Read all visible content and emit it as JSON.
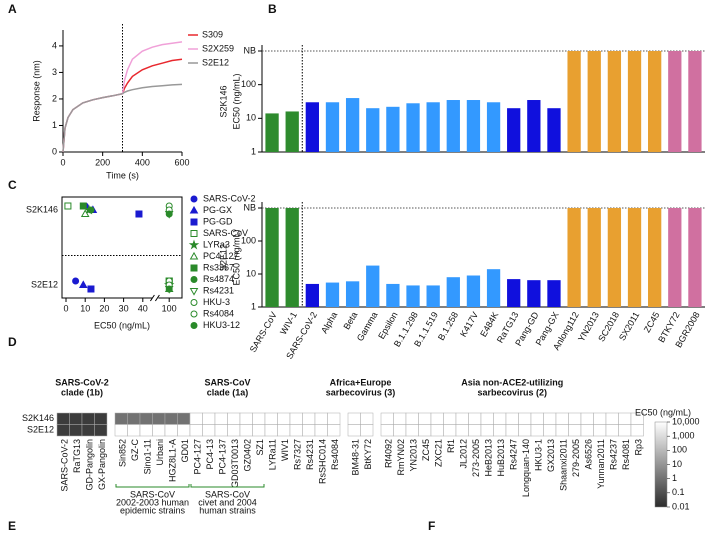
{
  "panel_labels": [
    "A",
    "B",
    "C",
    "D",
    "E",
    "F"
  ],
  "chart_data": [
    {
      "type": "line",
      "xlabel": "Time (s)",
      "ylabel": "Response (nm)",
      "x": [
        0,
        10,
        25,
        50,
        100,
        150,
        200,
        250,
        300,
        310,
        325,
        350,
        400,
        450,
        500,
        550,
        600
      ],
      "xlim": [
        0,
        600
      ],
      "xticks": [
        0,
        200,
        400,
        600
      ],
      "ylim": [
        0,
        4.6
      ],
      "yticks": [
        0,
        1,
        2,
        3,
        4
      ],
      "vline": 300,
      "series": [
        {
          "name": "S309",
          "color": "#e8282e",
          "values": [
            0,
            0.9,
            1.3,
            1.6,
            1.85,
            1.97,
            2.05,
            2.12,
            2.2,
            2.4,
            2.6,
            2.85,
            3.1,
            3.25,
            3.35,
            3.45,
            3.5
          ]
        },
        {
          "name": "S2X259",
          "color": "#f0a0d8",
          "values": [
            0,
            0.9,
            1.3,
            1.6,
            1.85,
            1.97,
            2.05,
            2.12,
            2.2,
            2.7,
            3.1,
            3.5,
            3.8,
            3.95,
            4.05,
            4.1,
            4.15
          ]
        },
        {
          "name": "S2E12",
          "color": "#999999",
          "values": [
            0,
            0.9,
            1.3,
            1.6,
            1.85,
            1.97,
            2.05,
            2.12,
            2.2,
            2.25,
            2.3,
            2.35,
            2.42,
            2.47,
            2.5,
            2.53,
            2.55
          ]
        }
      ]
    },
    {
      "type": "bar",
      "ylabel": [
        "S2K146",
        "EC50 (ng/mL)"
      ],
      "log": true,
      "ylim": [
        1,
        1000
      ],
      "yticks": [
        1,
        10,
        100,
        {
          "value": 1000,
          "label": "NB"
        }
      ],
      "colors": [
        "#2e8b2e",
        "#2e8b2e",
        "#1010dd",
        "#3399ff",
        "#3399ff",
        "#3399ff",
        "#3399ff",
        "#3399ff",
        "#3399ff",
        "#3399ff",
        "#3399ff",
        "#3399ff",
        "#1010dd",
        "#1010dd",
        "#1010dd",
        "#e8a030",
        "#e8a030",
        "#e8a030",
        "#e8a030",
        "#e8a030",
        "#d070a0",
        "#d070a0"
      ],
      "values": [
        14,
        16,
        30,
        30,
        40,
        20,
        22,
        28,
        30,
        35,
        35,
        30,
        20,
        35,
        20,
        1000,
        1000,
        1000,
        1000,
        1000,
        1000,
        1000
      ]
    },
    {
      "type": "bar",
      "ylabel": [
        "S2E12",
        "EC50 (ng/mL)"
      ],
      "log": true,
      "ylim": [
        1,
        1000
      ],
      "yticks": [
        1,
        10,
        100,
        {
          "value": 1000,
          "label": "NB"
        }
      ],
      "categories": [
        "SARS-CoV",
        "WIV-1",
        "SARS-CoV-2",
        "Alpha",
        "Beta",
        "Gamma",
        "Epsilon",
        "B.1.1.298",
        "B.1.1.519",
        "B.1.258",
        "K417V",
        "E484K",
        "RaTG13",
        "Pang-GD",
        "Pang-GX",
        "Anlong112",
        "YN2013",
        "SC2018",
        "SX2011",
        "ZC45",
        "BTKY72",
        "BGR2008"
      ],
      "colors": [
        "#2e8b2e",
        "#2e8b2e",
        "#1010dd",
        "#3399ff",
        "#3399ff",
        "#3399ff",
        "#3399ff",
        "#3399ff",
        "#3399ff",
        "#3399ff",
        "#3399ff",
        "#3399ff",
        "#1010dd",
        "#1010dd",
        "#1010dd",
        "#e8a030",
        "#e8a030",
        "#e8a030",
        "#e8a030",
        "#e8a030",
        "#d070a0",
        "#d070a0"
      ],
      "values": [
        1000,
        1000,
        5,
        5.5,
        6,
        18,
        5,
        4.5,
        4.5,
        8,
        9,
        14,
        7,
        6.5,
        6.5,
        1000,
        1000,
        1000,
        1000,
        1000,
        1000,
        1000
      ]
    },
    {
      "type": "scatter",
      "xlabel": "EC50 (ng/mL)",
      "categories": [
        "S2K146",
        "S2E12"
      ],
      "xlim": [
        0,
        105
      ],
      "xbreak": [
        45,
        95
      ],
      "xticks": [
        0,
        10,
        20,
        30,
        40,
        100
      ],
      "series": [
        {
          "name": "SARS-CoV-2",
          "color": "#1a1ad0",
          "marker": "circle",
          "values": [
            10,
            5
          ]
        },
        {
          "name": "PG-GX",
          "color": "#1a1ad0",
          "marker": "triangle",
          "values": [
            14,
            9
          ]
        },
        {
          "name": "PG-GD",
          "color": "#1a1ad0",
          "marker": "square",
          "values": [
            38,
            13
          ]
        },
        {
          "name": "SARS-CoV",
          "color": "#2a8a2a",
          "marker": "square-open",
          "values": [
            1,
            100
          ]
        },
        {
          "name": "LYRa3",
          "color": "#2a8a2a",
          "marker": "star",
          "values": [
            12,
            100
          ]
        },
        {
          "name": "PC4-127",
          "color": "#2a8a2a",
          "marker": "triangle-open",
          "values": [
            10,
            100
          ]
        },
        {
          "name": "Rs3367",
          "color": "#2a8a2a",
          "marker": "square",
          "values": [
            9,
            100
          ]
        },
        {
          "name": "Rs4874",
          "color": "#2a8a2a",
          "marker": "circle",
          "values": [
            13,
            100
          ]
        },
        {
          "name": "Rs4231",
          "color": "#2a8a2a",
          "marker": "triangle-down-open",
          "values": [
            100,
            100
          ]
        },
        {
          "name": "HKU-3",
          "color": "#2a8a2a",
          "marker": "circle-open",
          "values": [
            100,
            100
          ]
        },
        {
          "name": "Rs4084",
          "color": "#2a8a2a",
          "marker": "circle-open",
          "values": [
            100,
            100
          ]
        },
        {
          "name": "HKU3-12",
          "color": "#2a8a2a",
          "marker": "circle",
          "values": [
            100,
            100
          ]
        }
      ]
    },
    {
      "type": "heatmap",
      "rows": [
        "S2K146",
        "S2E12"
      ],
      "groups": [
        {
          "title": [
            "SARS-CoV-2",
            "clade (1b)"
          ],
          "color": "#1a1ad0",
          "columns": [
            "SARS-CoV-2",
            "RaTG13",
            "GD-Pangolin",
            "GX-Pangolin"
          ]
        },
        {
          "title": [
            "SARS-CoV",
            "clade (1a)"
          ],
          "color": "#2a8a2a",
          "columns": [
            "Sin852",
            "GZ-C",
            "Sino1-11",
            "Urbani",
            "HGZ8L1-A",
            "GD01",
            "PC4-127",
            "PC4-13",
            "PC4-137",
            "GD03T0013",
            "GZ0402",
            "SZ1",
            "LYRa11",
            "WIV1",
            "Rs7327",
            "Rs4231",
            "RsSHC014",
            "Rs4084"
          ]
        },
        {
          "title": [
            "Africa+Europe",
            "sarbecovirus (3)"
          ],
          "color": "#c060a0",
          "columns": [
            "BM48-31",
            "BtKY72"
          ]
        },
        {
          "title": [
            "Asia non-ACE2-utilizing",
            "sarbecovirus (2)"
          ],
          "color": "#e09a30",
          "columns": [
            "Rf4092",
            "RmYN02",
            "YN2013",
            "ZC45",
            "ZXC21",
            "Rf1",
            "JL2012",
            "273-2005",
            "HeB2013",
            "HuB2013",
            "Rs4247",
            "Longquan-140",
            "HKU3-1",
            "GX2013",
            "Shaanxi2011",
            "279-2005",
            "As6526",
            "Yunnan2011",
            "Rs4237",
            "Rs4081",
            "Rp3"
          ]
        }
      ],
      "values": [
        [
          0.03,
          0.03,
          0.03,
          0.03,
          1,
          1,
          1,
          1,
          1,
          1,
          null,
          null,
          null,
          null,
          null,
          null,
          null,
          null,
          null,
          null,
          null,
          null,
          null,
          null,
          null,
          null,
          null,
          null,
          null,
          null,
          null,
          null,
          null,
          null,
          null,
          null,
          null,
          null,
          null,
          null,
          null,
          null,
          null,
          null,
          null
        ],
        [
          0.03,
          0.03,
          0.03,
          0.03,
          null,
          null,
          null,
          null,
          null,
          null,
          null,
          null,
          null,
          null,
          null,
          null,
          null,
          null,
          null,
          null,
          null,
          null,
          null,
          null,
          null,
          null,
          null,
          null,
          null,
          null,
          null,
          null,
          null,
          null,
          null,
          null,
          null,
          null,
          null,
          null,
          null,
          null,
          null,
          null,
          null
        ]
      ],
      "brackets": [
        {
          "lines": [
            "SARS-CoV",
            "2002-2003 human",
            "epidemic strains"
          ]
        },
        {
          "lines": [
            "SARS-CoV",
            "civet and 2004",
            "human strains"
          ]
        }
      ],
      "colorbar": {
        "title": "EC50 (ng/mL)",
        "ticks": [
          {
            "value": 10000,
            "label": "10,000"
          },
          {
            "value": 1000,
            "label": "1,000"
          },
          100,
          10,
          1,
          0.1,
          0.01
        ]
      }
    }
  ]
}
